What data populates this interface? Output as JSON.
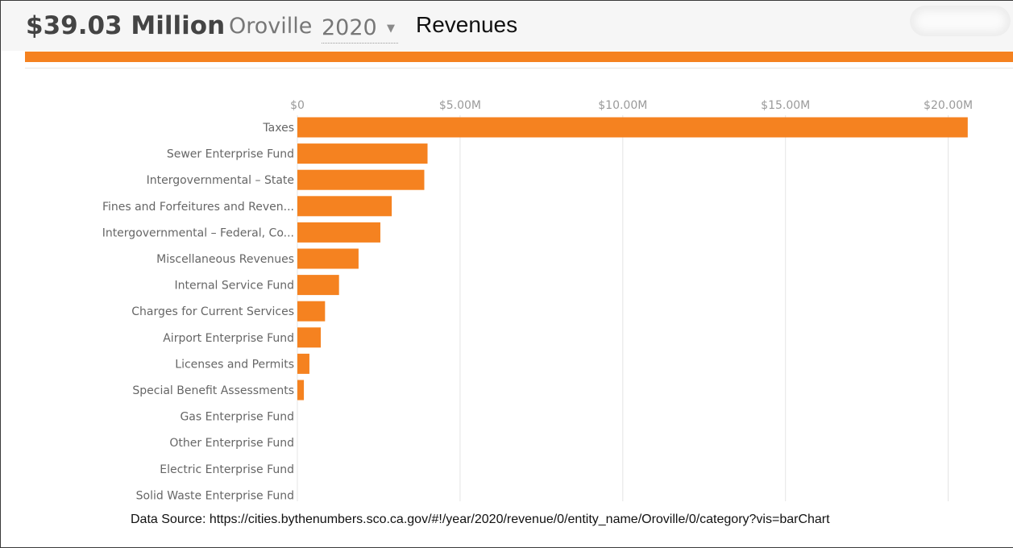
{
  "header": {
    "amount": "$39.03 Million",
    "city": "Oroville",
    "year": "2020",
    "title": "Revenues"
  },
  "colors": {
    "accent": "#f58220",
    "bar": "#f58220",
    "grid": "#e4e4e4"
  },
  "source": "Data Source: https://cities.bythenumbers.sco.ca.gov/#!/year/2020/revenue/0/entity_name/Oroville/0/category?vis=barChart",
  "chart_data": {
    "type": "bar",
    "orientation": "horizontal",
    "title": "Revenues",
    "tick_labels": [
      "$0",
      "$5.00M",
      "$10.00M",
      "$15.00M",
      "$20.00M"
    ],
    "ticks": [
      0,
      5,
      10,
      15,
      20
    ],
    "xlim": [
      0,
      20.92
    ],
    "unit": "$M",
    "categories": [
      "Taxes",
      "Sewer Enterprise Fund",
      "Intergovernmental – State",
      "Fines and Forfeitures and Reven...",
      "Intergovernmental – Federal, Co...",
      "Miscellaneous Revenues",
      "Internal Service Fund",
      "Charges for Current Services",
      "Airport Enterprise Fund",
      "Licenses and Permits",
      "Special Benefit Assessments",
      "Gas Enterprise Fund",
      "Other Enterprise Fund",
      "Electric Enterprise Fund",
      "Solid Waste Enterprise Fund"
    ],
    "values": [
      20.6,
      4.0,
      3.9,
      2.9,
      2.55,
      1.88,
      1.28,
      0.85,
      0.72,
      0.37,
      0.2,
      0,
      0,
      0,
      0
    ],
    "grid": true
  }
}
